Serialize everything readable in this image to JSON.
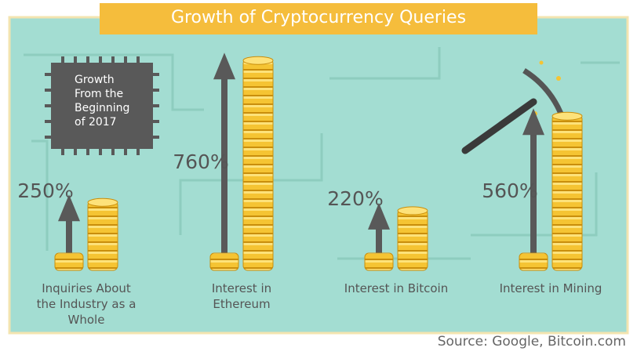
{
  "chart_data": {
    "type": "bar",
    "title": "Growth of Cryptocurrency Queries",
    "note": "Growth From the Beginning of 2017",
    "source": "Source: Google, Bitcoin.com",
    "categories": [
      "Inquiries About the Industry as a Whole",
      "Interest in Ethereum",
      "Interest in Bitcoin",
      "Interest in Mining"
    ],
    "values": [
      250,
      760,
      220,
      560
    ],
    "value_labels": [
      "250%",
      "760%",
      "220%",
      "560%"
    ],
    "color": "#595959"
  }
}
